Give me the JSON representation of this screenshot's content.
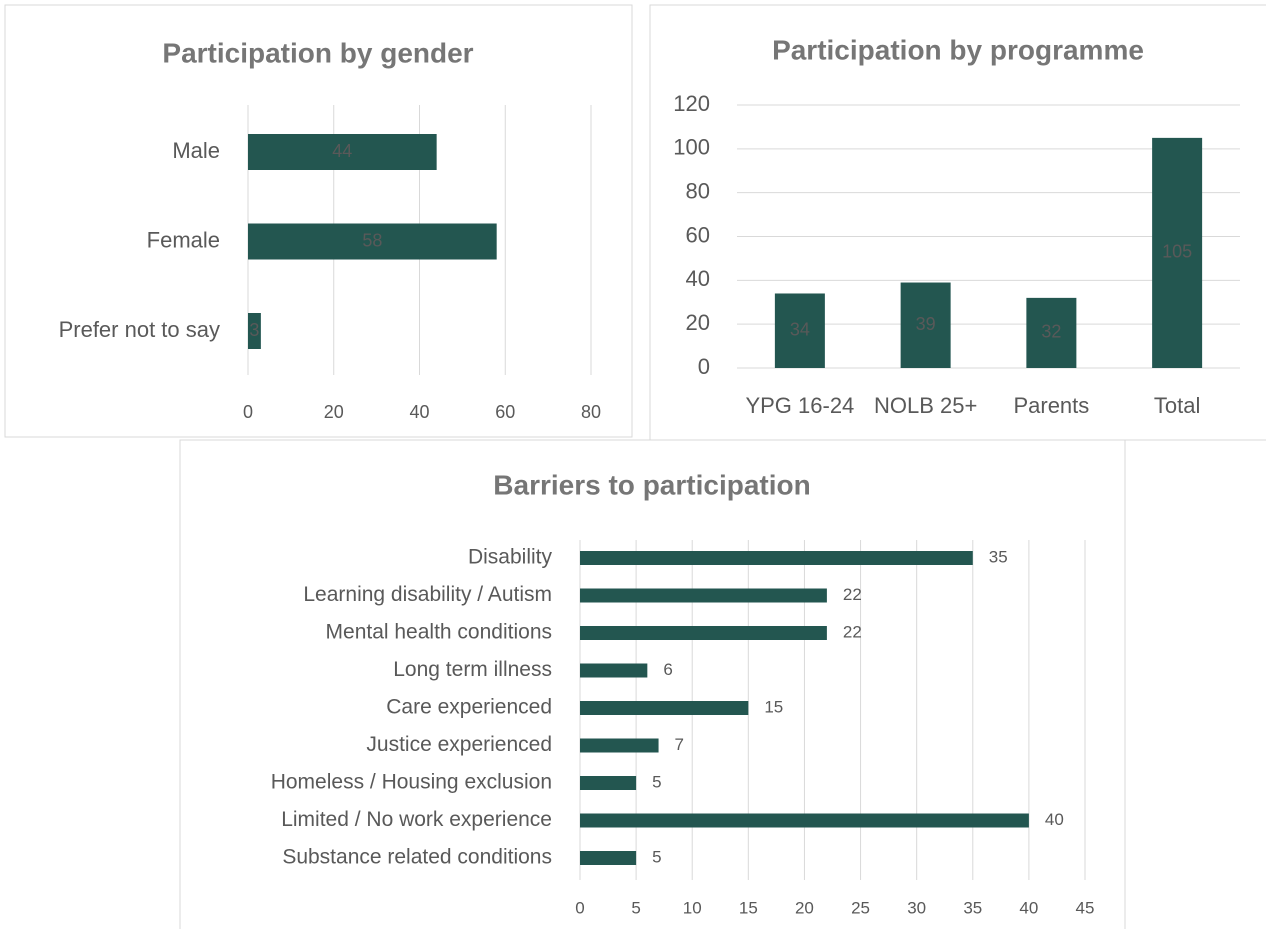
{
  "chart_data": [
    {
      "type": "bar",
      "orientation": "horizontal",
      "title": "Participation by gender",
      "categories": [
        "Male",
        "Female",
        "Prefer not to say"
      ],
      "values": [
        44,
        58,
        3
      ],
      "color": "#235650",
      "xlim": [
        0,
        80
      ],
      "xticks": [
        0,
        20,
        40,
        60,
        80
      ],
      "grid": true,
      "label_position": "center"
    },
    {
      "type": "bar",
      "orientation": "vertical",
      "title": "Participation by programme",
      "categories": [
        "YPG 16-24",
        "NOLB 25+",
        "Parents",
        "Total"
      ],
      "values": [
        34,
        39,
        32,
        105
      ],
      "color": "#235650",
      "ylim": [
        0,
        120
      ],
      "yticks": [
        0,
        20,
        40,
        60,
        80,
        100,
        120
      ],
      "grid": true,
      "label_position": "center"
    },
    {
      "type": "bar",
      "orientation": "horizontal",
      "title": "Barriers to participation",
      "categories": [
        "Disability",
        "Learning disability / Autism",
        "Mental health conditions",
        "Long term illness",
        "Care experienced",
        "Justice experienced",
        "Homeless / Housing exclusion",
        "Limited / No work experience",
        "Substance related conditions"
      ],
      "values": [
        35,
        22,
        22,
        6,
        15,
        7,
        5,
        40,
        5
      ],
      "color": "#235650",
      "xlim": [
        0,
        45
      ],
      "xticks": [
        0,
        5,
        10,
        15,
        20,
        25,
        30,
        35,
        40,
        45
      ],
      "grid": true,
      "label_position": "outside_end"
    }
  ]
}
